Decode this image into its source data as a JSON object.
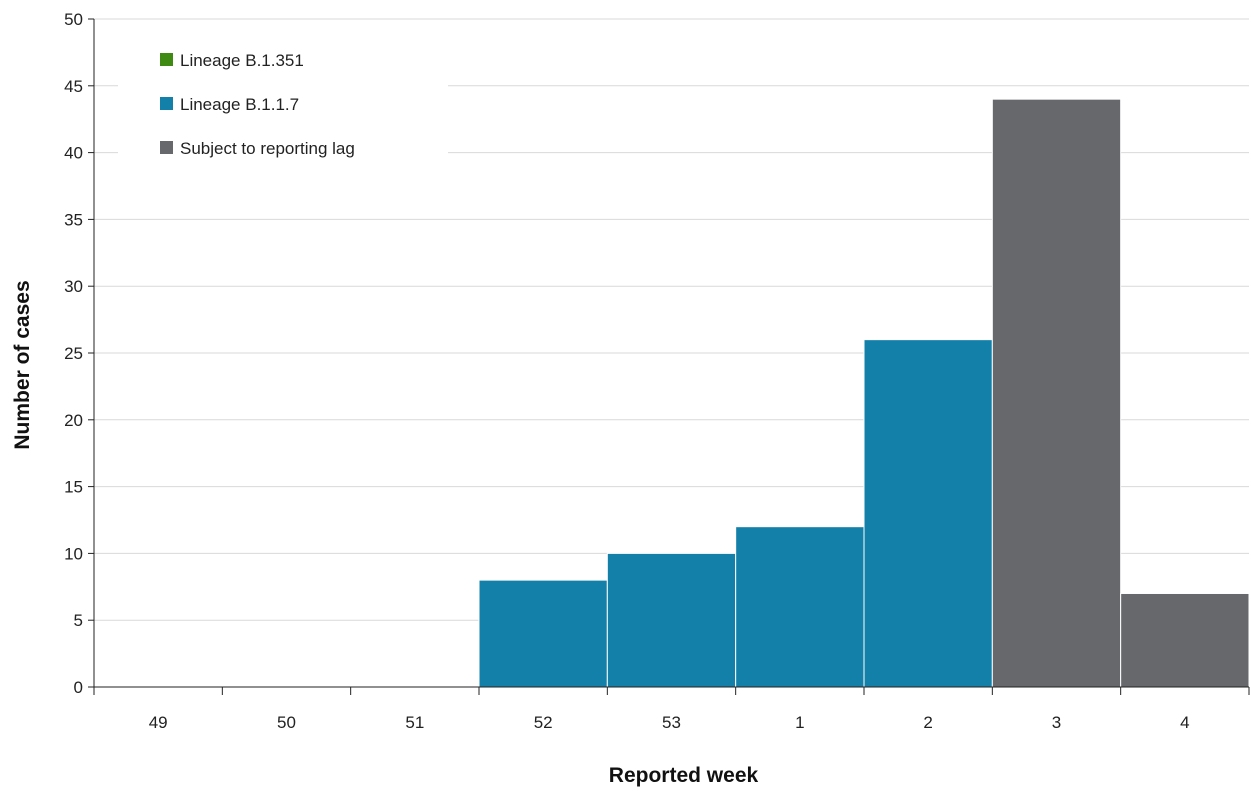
{
  "chart_data": {
    "type": "bar",
    "stacked": true,
    "categories": [
      "49",
      "50",
      "51",
      "52",
      "53",
      "1",
      "2",
      "3",
      "4"
    ],
    "series": [
      {
        "name": "Lineage B.1.351",
        "color": "#3f8a12",
        "values": [
          0,
          0,
          0,
          0,
          0,
          0,
          0,
          0,
          0
        ]
      },
      {
        "name": "Lineage B.1.1.7",
        "color": "#1380aa",
        "values": [
          0,
          0,
          0,
          8,
          10,
          12,
          26,
          0,
          0
        ]
      },
      {
        "name": "Subject to reporting lag",
        "color": "#67686c",
        "values": [
          0,
          0,
          0,
          0,
          0,
          0,
          0,
          44,
          7
        ]
      }
    ],
    "xlabel": "Reported week",
    "ylabel": "Number of cases",
    "ylim": [
      0,
      50
    ],
    "yticks": [
      0,
      5,
      10,
      15,
      20,
      25,
      30,
      35,
      40,
      45,
      50
    ],
    "grid": true,
    "legend_position": "top-left"
  }
}
